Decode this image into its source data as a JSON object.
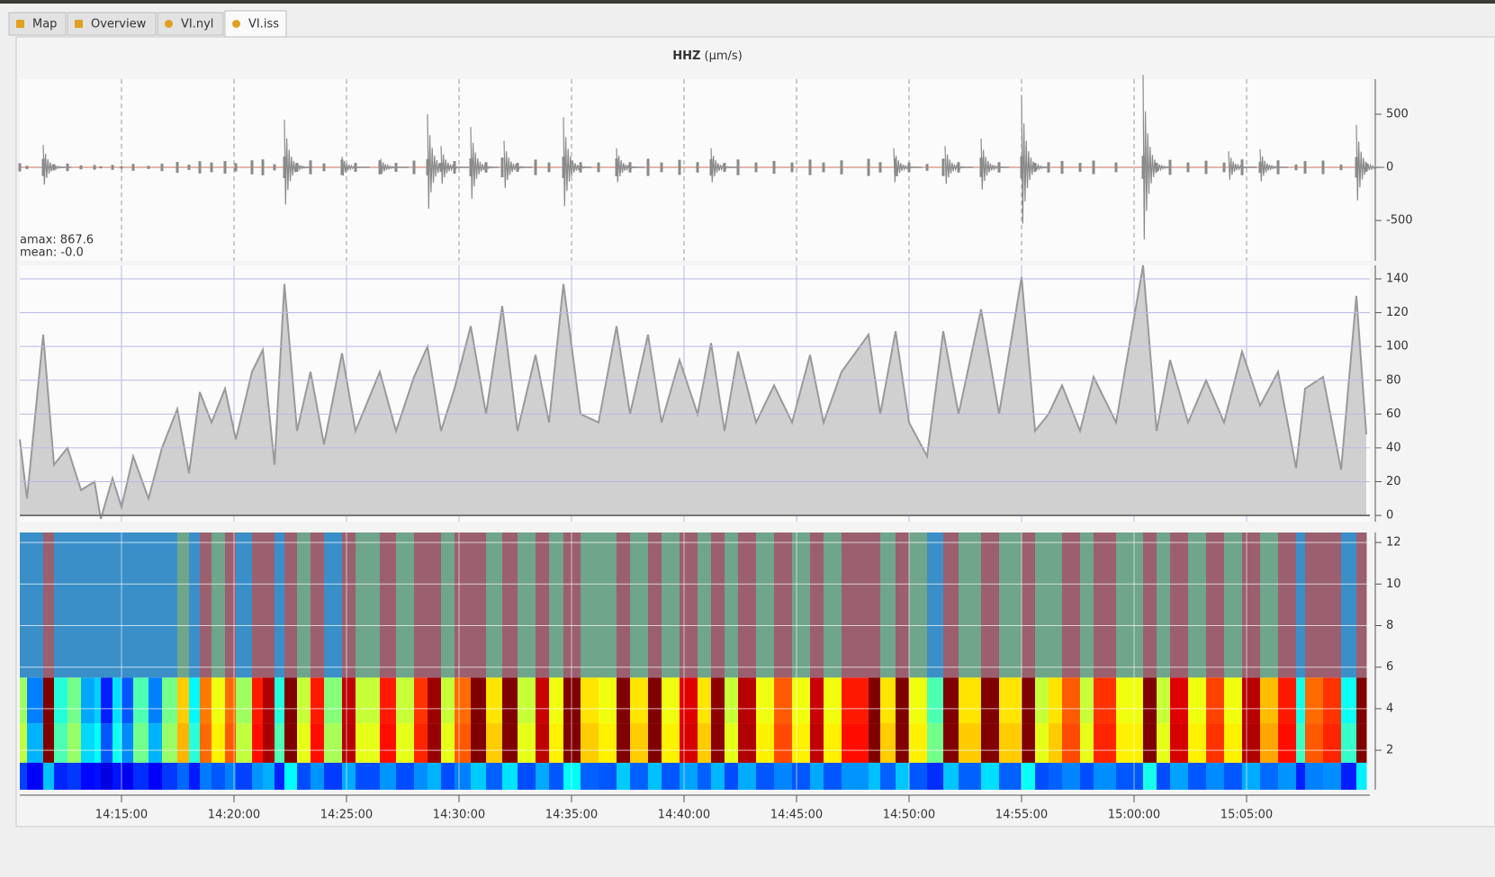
{
  "tabs": [
    "Map",
    "Overview",
    "VI.nyl",
    "VI.iss"
  ],
  "active_tab": 3,
  "chart": {
    "type": "seismogram",
    "title": "HHZ",
    "unit": "(μm/s)",
    "stats": [
      "amax: 867.6",
      "mean: -0.0"
    ],
    "xlim": [
      850.48,
      910.48
    ],
    "xticks": [
      {
        "value": 855,
        "label": "14:15:00"
      },
      {
        "value": 860,
        "label": "14:20:00"
      },
      {
        "value": 865,
        "label": "14:25:00"
      },
      {
        "value": 870,
        "label": "14:30:00"
      },
      {
        "value": 875,
        "label": "14:35:00"
      },
      {
        "value": 880,
        "label": "14:40:00"
      },
      {
        "value": 885,
        "label": "14:45:00"
      },
      {
        "value": 890,
        "label": "14:50:00"
      },
      {
        "value": 895,
        "label": "14:55:00"
      },
      {
        "value": 900,
        "label": "15:00:00"
      },
      {
        "value": 905,
        "label": "15:05:00"
      }
    ],
    "waveform": {
      "ylim": [
        -880,
        830
      ],
      "yticks": [
        500,
        0,
        -500
      ],
      "color": "#8a8a8a",
      "x": [
        851.52,
        862.24,
        864.8,
        866.52,
        868.6,
        869.2,
        870.52,
        872.0,
        874.64,
        877.0,
        881.2,
        889.32,
        891.6,
        893.2,
        895.0,
        900.4,
        904.2,
        905.6,
        909.88
      ],
      "values": [
        210,
        450,
        100,
        80,
        500,
        200,
        380,
        250,
        470,
        180,
        180,
        180,
        200,
        270,
        680,
        870,
        150,
        170,
        400
      ]
    },
    "envelope": {
      "ylim": [
        -3.7,
        148
      ],
      "yticks": [
        140,
        120,
        100,
        80,
        60,
        40,
        20,
        0
      ],
      "color": "#999999",
      "fill": "#d0d0d0",
      "x": [
        850.48,
        850.8,
        851.52,
        852.0,
        852.6,
        853.2,
        853.8,
        854.08,
        854.6,
        855.0,
        855.52,
        856.2,
        856.8,
        857.48,
        858.0,
        858.48,
        859.0,
        859.6,
        860.08,
        860.8,
        861.28,
        861.8,
        862.24,
        862.8,
        863.4,
        864.0,
        864.8,
        865.4,
        866.48,
        867.2,
        868.0,
        868.6,
        869.2,
        869.8,
        870.52,
        871.2,
        871.92,
        872.6,
        873.4,
        874.0,
        874.64,
        875.4,
        876.2,
        877.0,
        877.6,
        878.4,
        879.0,
        879.8,
        880.6,
        881.2,
        881.8,
        882.4,
        883.2,
        884.0,
        884.8,
        885.6,
        886.2,
        887.0,
        888.2,
        888.72,
        889.4,
        890.0,
        890.8,
        891.52,
        892.2,
        893.2,
        894.0,
        895.0,
        895.6,
        896.2,
        896.8,
        897.6,
        898.2,
        899.2,
        900.4,
        901.0,
        901.6,
        902.4,
        903.2,
        904.0,
        904.8,
        905.6,
        906.4,
        907.2,
        907.6,
        908.4,
        909.2,
        909.88,
        910.32
      ],
      "values": [
        45,
        10,
        107,
        30,
        40,
        15,
        20,
        -2,
        22,
        5,
        35,
        10,
        40,
        63,
        25,
        73,
        55,
        75,
        45,
        85,
        98,
        30,
        137,
        50,
        85,
        42,
        96,
        50,
        85,
        50,
        82,
        100,
        50,
        75,
        112,
        60,
        124,
        50,
        95,
        55,
        137,
        60,
        55,
        112,
        60,
        107,
        55,
        92,
        60,
        102,
        50,
        97,
        55,
        77,
        55,
        95,
        55,
        85,
        107,
        60,
        109,
        55,
        35,
        109,
        60,
        122,
        60,
        141,
        50,
        60,
        77,
        50,
        82,
        55,
        148,
        50,
        92,
        55,
        80,
        55,
        97,
        65,
        85,
        28,
        75,
        82,
        27,
        130,
        48
      ]
    },
    "spectrogram": {
      "ylim": [
        0.1,
        12.48
      ],
      "yticks": [
        12,
        10,
        8,
        6,
        4,
        2
      ]
    }
  }
}
